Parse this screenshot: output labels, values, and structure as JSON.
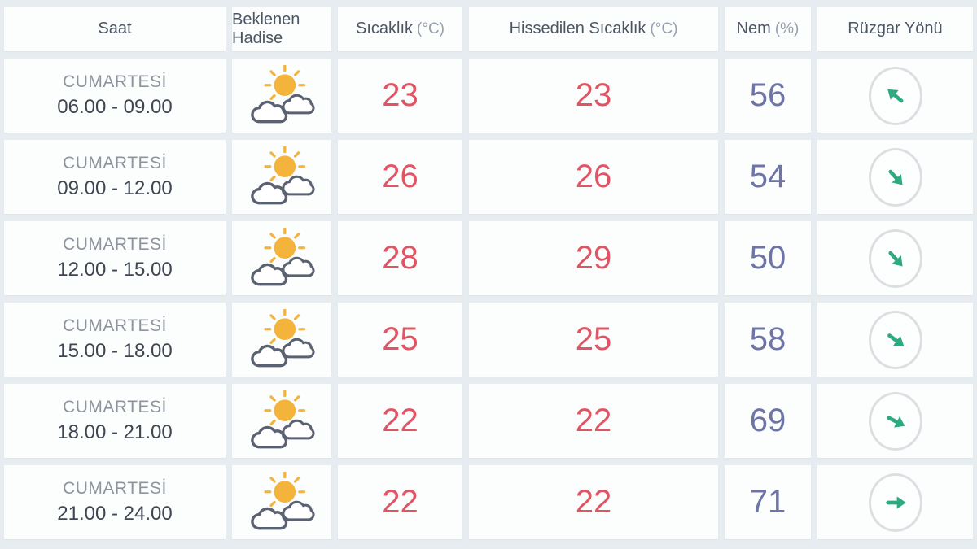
{
  "table": {
    "headers": [
      {
        "label": "Saat",
        "unit": ""
      },
      {
        "label": "Beklenen Hadise",
        "unit": ""
      },
      {
        "label": "Sıcaklık",
        "unit": "(°C)"
      },
      {
        "label": "Hissedilen Sıcaklık",
        "unit": "(°C)"
      },
      {
        "label": "Nem",
        "unit": "(%)"
      },
      {
        "label": "Rüzgar Yönü",
        "unit": ""
      }
    ],
    "rows": [
      {
        "day": "CUMARTESİ",
        "time": "06.00 - 09.00",
        "condition_icon": "sun-behind-clouds",
        "temperature": "23",
        "feels_like": "23",
        "humidity": "56",
        "wind": {
          "rotation_deg": -140
        }
      },
      {
        "day": "CUMARTESİ",
        "time": "09.00 - 12.00",
        "condition_icon": "sun-behind-clouds",
        "temperature": "26",
        "feels_like": "26",
        "humidity": "54",
        "wind": {
          "rotation_deg": 48
        }
      },
      {
        "day": "CUMARTESİ",
        "time": "12.00 - 15.00",
        "condition_icon": "sun-behind-clouds",
        "temperature": "28",
        "feels_like": "29",
        "humidity": "50",
        "wind": {
          "rotation_deg": 48
        }
      },
      {
        "day": "CUMARTESİ",
        "time": "15.00 - 18.00",
        "condition_icon": "sun-behind-clouds",
        "temperature": "25",
        "feels_like": "25",
        "humidity": "58",
        "wind": {
          "rotation_deg": 36
        }
      },
      {
        "day": "CUMARTESİ",
        "time": "18.00 - 21.00",
        "condition_icon": "sun-behind-clouds",
        "temperature": "22",
        "feels_like": "22",
        "humidity": "69",
        "wind": {
          "rotation_deg": 27
        }
      },
      {
        "day": "CUMARTESİ",
        "time": "21.00 - 24.00",
        "condition_icon": "sun-behind-clouds",
        "temperature": "22",
        "feels_like": "22",
        "humidity": "71",
        "wind": {
          "rotation_deg": 0
        }
      }
    ]
  },
  "colors": {
    "background": "#e6ecf0",
    "cell_background": "#fcfdfd",
    "header_text": "#4b5563",
    "header_unit_text": "#98a0ab",
    "day_text": "#8e949e",
    "time_text": "#3f4651",
    "temperature_text": "#e15463",
    "humidity_text": "#6f74a6",
    "wind_arrow": "#2dab7e",
    "wind_circle_border": "#dcdfe2",
    "sun": "#f4b43c",
    "cloud_outline": "#5a6170"
  }
}
